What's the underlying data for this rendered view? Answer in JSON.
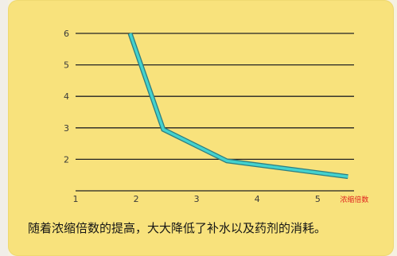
{
  "colors": {
    "card_background": "#f8e27c",
    "gridline": "#222222",
    "axis_tick_label": "#3a3a3a",
    "series_line": "#43d2ce",
    "series_outline": "#2e7e80",
    "axis_unit_label": "#e0221e"
  },
  "chart_data": {
    "type": "line",
    "title": "",
    "xlabel": "浓缩倍数",
    "ylabel": "",
    "xlim": [
      1,
      5.6
    ],
    "ylim": [
      1,
      6
    ],
    "x_ticks": [
      "1",
      "2",
      "3",
      "4",
      "5"
    ],
    "y_ticks": [
      "2",
      "3",
      "4",
      "5",
      "6"
    ],
    "grid": "horizontal",
    "legend": "none",
    "series": [
      {
        "x": [
          1.9,
          2.45,
          3.5,
          5.5
        ],
        "y": [
          6.0,
          2.95,
          1.95,
          1.45
        ]
      }
    ]
  },
  "caption": "随着浓缩倍数的提高，大大降低了补水以及药剂的消耗。"
}
